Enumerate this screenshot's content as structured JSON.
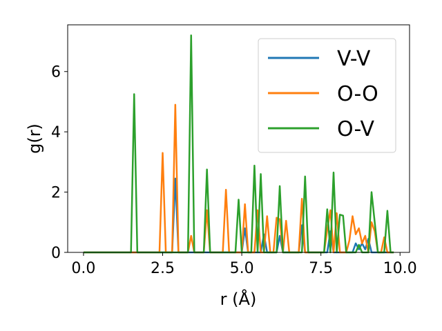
{
  "chart_data": {
    "type": "line",
    "xlabel": "r (Å)",
    "ylabel": "g(r)",
    "xlim": [
      -0.5,
      10.3
    ],
    "ylim": [
      0,
      7.55
    ],
    "xticks": [
      0.0,
      2.5,
      5.0,
      7.5,
      10.0
    ],
    "xtick_labels": [
      "0.0",
      "2.5",
      "5.0",
      "7.5",
      "10.0"
    ],
    "yticks": [
      0,
      2,
      4,
      6
    ],
    "ytick_labels": [
      "0",
      "2",
      "4",
      "6"
    ],
    "grid": false,
    "legend_position": "top-right",
    "series": [
      {
        "name": "V-V",
        "color": "#1f77b4",
        "points": [
          [
            0.0,
            0
          ],
          [
            2.8,
            0
          ],
          [
            2.9,
            2.45
          ],
          [
            3.0,
            0
          ],
          [
            5.0,
            0
          ],
          [
            5.1,
            0.8
          ],
          [
            5.2,
            0
          ],
          [
            5.6,
            0
          ],
          [
            5.7,
            0.6
          ],
          [
            5.8,
            0
          ],
          [
            6.1,
            0
          ],
          [
            6.2,
            0.55
          ],
          [
            6.3,
            0
          ],
          [
            6.8,
            0
          ],
          [
            6.9,
            0.9
          ],
          [
            7.0,
            0
          ],
          [
            7.7,
            0
          ],
          [
            7.8,
            0.7
          ],
          [
            7.9,
            0
          ],
          [
            8.5,
            0
          ],
          [
            8.6,
            0.3
          ],
          [
            8.7,
            0.1
          ],
          [
            8.8,
            0.3
          ],
          [
            8.9,
            0.1
          ],
          [
            9.0,
            0.45
          ],
          [
            9.1,
            0
          ],
          [
            9.8,
            0
          ]
        ]
      },
      {
        "name": "O-O",
        "color": "#ff7f0e",
        "points": [
          [
            0.0,
            0
          ],
          [
            2.4,
            0
          ],
          [
            2.5,
            3.3
          ],
          [
            2.6,
            0
          ],
          [
            2.8,
            0
          ],
          [
            2.9,
            4.9
          ],
          [
            3.0,
            0
          ],
          [
            3.3,
            0
          ],
          [
            3.4,
            0.55
          ],
          [
            3.5,
            0
          ],
          [
            3.8,
            0
          ],
          [
            3.9,
            1.4
          ],
          [
            4.0,
            0
          ],
          [
            4.4,
            0
          ],
          [
            4.5,
            2.08
          ],
          [
            4.6,
            0
          ],
          [
            5.0,
            0
          ],
          [
            5.1,
            1.6
          ],
          [
            5.2,
            0
          ],
          [
            5.4,
            0
          ],
          [
            5.5,
            1.4
          ],
          [
            5.6,
            0
          ],
          [
            5.7,
            0
          ],
          [
            5.8,
            1.2
          ],
          [
            5.9,
            0
          ],
          [
            6.0,
            0
          ],
          [
            6.1,
            1.15
          ],
          [
            6.2,
            1.1
          ],
          [
            6.3,
            0
          ],
          [
            6.4,
            1.05
          ],
          [
            6.5,
            0
          ],
          [
            6.8,
            0
          ],
          [
            6.9,
            1.78
          ],
          [
            7.0,
            0
          ],
          [
            7.6,
            0
          ],
          [
            7.7,
            0.75
          ],
          [
            7.8,
            1.4
          ],
          [
            7.9,
            0
          ],
          [
            8.0,
            1.3
          ],
          [
            8.1,
            0
          ],
          [
            8.3,
            0
          ],
          [
            8.4,
            0.4
          ],
          [
            8.5,
            1.2
          ],
          [
            8.6,
            0.6
          ],
          [
            8.7,
            0.8
          ],
          [
            8.8,
            0.3
          ],
          [
            8.9,
            0.55
          ],
          [
            9.0,
            0
          ],
          [
            9.1,
            1.0
          ],
          [
            9.2,
            0.7
          ],
          [
            9.3,
            0
          ],
          [
            9.4,
            0
          ],
          [
            9.5,
            0.5
          ],
          [
            9.6,
            0
          ],
          [
            9.8,
            0
          ]
        ]
      },
      {
        "name": "O-V",
        "color": "#2ca02c",
        "points": [
          [
            0.0,
            0
          ],
          [
            1.5,
            0
          ],
          [
            1.6,
            5.25
          ],
          [
            1.7,
            0
          ],
          [
            3.3,
            0
          ],
          [
            3.4,
            7.2
          ],
          [
            3.5,
            0
          ],
          [
            3.8,
            0
          ],
          [
            3.9,
            2.75
          ],
          [
            4.0,
            0
          ],
          [
            4.8,
            0
          ],
          [
            4.9,
            1.75
          ],
          [
            5.0,
            0
          ],
          [
            5.3,
            0
          ],
          [
            5.4,
            2.88
          ],
          [
            5.5,
            0
          ],
          [
            5.6,
            2.6
          ],
          [
            5.7,
            0
          ],
          [
            6.1,
            0
          ],
          [
            6.2,
            2.2
          ],
          [
            6.3,
            0
          ],
          [
            6.9,
            0
          ],
          [
            7.0,
            2.52
          ],
          [
            7.1,
            0
          ],
          [
            7.6,
            0
          ],
          [
            7.7,
            1.43
          ],
          [
            7.8,
            0
          ],
          [
            7.9,
            2.65
          ],
          [
            8.0,
            0
          ],
          [
            8.1,
            1.25
          ],
          [
            8.2,
            1.22
          ],
          [
            8.3,
            0
          ],
          [
            8.6,
            0
          ],
          [
            8.7,
            0.25
          ],
          [
            8.8,
            0
          ],
          [
            9.0,
            0
          ],
          [
            9.1,
            2.0
          ],
          [
            9.2,
            1.0
          ],
          [
            9.3,
            0
          ],
          [
            9.5,
            0
          ],
          [
            9.6,
            1.38
          ],
          [
            9.7,
            0
          ],
          [
            9.8,
            0
          ]
        ]
      }
    ]
  }
}
